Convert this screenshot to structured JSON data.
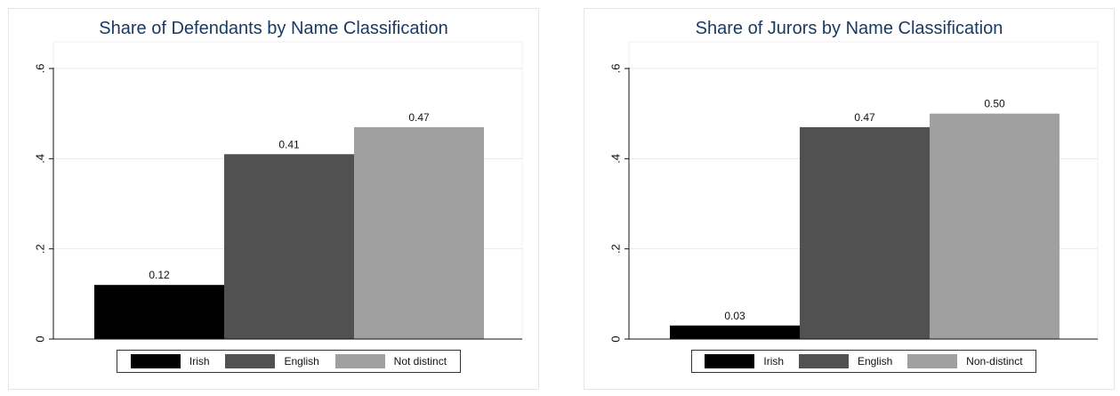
{
  "chart_data": [
    {
      "type": "bar",
      "title": "Share of Defendants by Name Classification",
      "categories": [
        "Irish",
        "English",
        "Not distinct"
      ],
      "values": [
        0.12,
        0.41,
        0.47
      ],
      "value_labels": [
        "0.12",
        "0.41",
        "0.47"
      ],
      "colors": [
        "#000000",
        "#515151",
        "#a0a0a0"
      ],
      "ylim": [
        0,
        0.6
      ],
      "yticks": [
        0,
        0.2,
        0.4,
        0.6
      ],
      "ytick_labels": [
        "0",
        ".2",
        ".4",
        ".6"
      ],
      "xlabel": "",
      "ylabel": "",
      "grid": true,
      "legend_position": "bottom"
    },
    {
      "type": "bar",
      "title": "Share of Jurors by Name Classification",
      "categories": [
        "Irish",
        "English",
        "Non-distinct"
      ],
      "values": [
        0.03,
        0.47,
        0.5
      ],
      "value_labels": [
        "0.03",
        "0.47",
        "0.50"
      ],
      "colors": [
        "#000000",
        "#515151",
        "#a0a0a0"
      ],
      "ylim": [
        0,
        0.6
      ],
      "yticks": [
        0,
        0.2,
        0.4,
        0.6
      ],
      "ytick_labels": [
        "0",
        ".2",
        ".4",
        ".6"
      ],
      "xlabel": "",
      "ylabel": "",
      "grid": true,
      "legend_position": "bottom"
    }
  ]
}
